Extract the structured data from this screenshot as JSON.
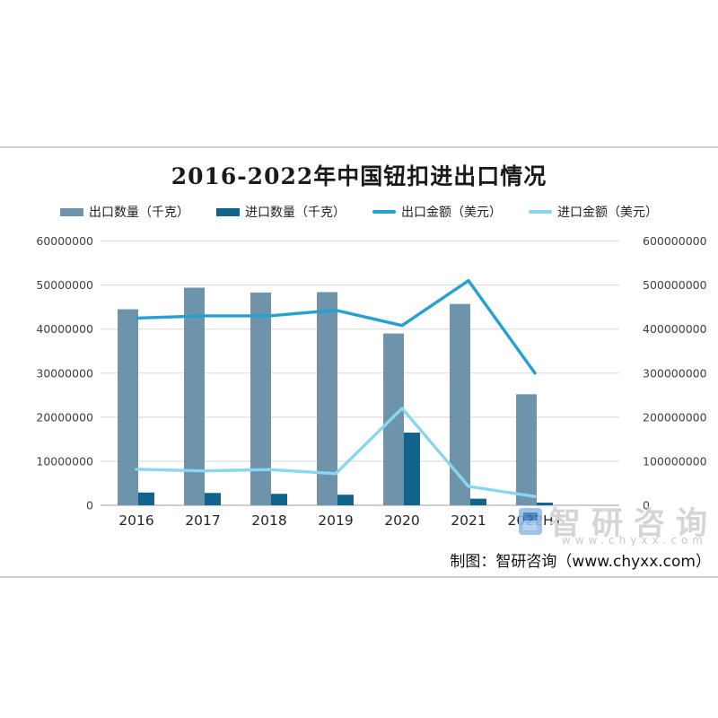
{
  "page": {
    "background": "#ffffff"
  },
  "chart": {
    "title": "2016-2022年中国钮扣进出口情况",
    "footer": "制图：智研咨询（www.chyxx.com）",
    "watermark": {
      "brand": "智研咨询",
      "url": "www.chyxx.com"
    },
    "legend": [
      {
        "label": "出口数量（千克）",
        "type": "bar",
        "color": "#6E94AB"
      },
      {
        "label": "进口数量（千克）",
        "type": "bar",
        "color": "#11658C"
      },
      {
        "label": "出口金额（美元）",
        "type": "line",
        "color": "#26A0D2"
      },
      {
        "label": "进口金额（美元）",
        "type": "line",
        "color": "#8AD5F2"
      }
    ],
    "colors": {
      "gridline": "#dcdcdc",
      "axis_line": "#bfbfbf",
      "tick_text": "#404040",
      "category_text": "#262626"
    }
  },
  "chart_data": {
    "type": "bar",
    "subtype": "grouped bars with two overlay lines (dual axis combo)",
    "title": "2016-2022年中国钮扣进出口情况",
    "categories": [
      "2016",
      "2017",
      "2018",
      "2019",
      "2020",
      "2021",
      "2022H1"
    ],
    "series": [
      {
        "name": "出口数量（千克）",
        "type": "bar",
        "axis": "left",
        "color": "#6E94AB",
        "values": [
          44500000,
          49400000,
          48300000,
          48400000,
          39000000,
          45700000,
          25200000
        ]
      },
      {
        "name": "进口数量（千克）",
        "type": "bar",
        "axis": "left",
        "color": "#11658C",
        "values": [
          2900000,
          2800000,
          2600000,
          2400000,
          16500000,
          1500000,
          600000
        ]
      },
      {
        "name": "出口金额（美元）",
        "type": "line",
        "axis": "right",
        "color": "#26A0D2",
        "values": [
          425000000,
          430000000,
          430000000,
          443000000,
          408000000,
          510000000,
          300000000
        ]
      },
      {
        "name": "进口金额（美元）",
        "type": "line",
        "axis": "right",
        "color": "#8AD5F2",
        "values": [
          82000000,
          78000000,
          81000000,
          72000000,
          220000000,
          43000000,
          20000000
        ]
      }
    ],
    "left_axis": {
      "min": 0,
      "max": 60000000,
      "step": 10000000,
      "ticks": [
        "0",
        "10000000",
        "20000000",
        "30000000",
        "40000000",
        "50000000",
        "60000000"
      ]
    },
    "right_axis": {
      "min": 0,
      "max": 600000000,
      "step": 100000000,
      "ticks": [
        "0",
        "100000000",
        "200000000",
        "300000000",
        "400000000",
        "500000000",
        "600000000"
      ]
    },
    "grid": true,
    "legend_position": "top"
  }
}
